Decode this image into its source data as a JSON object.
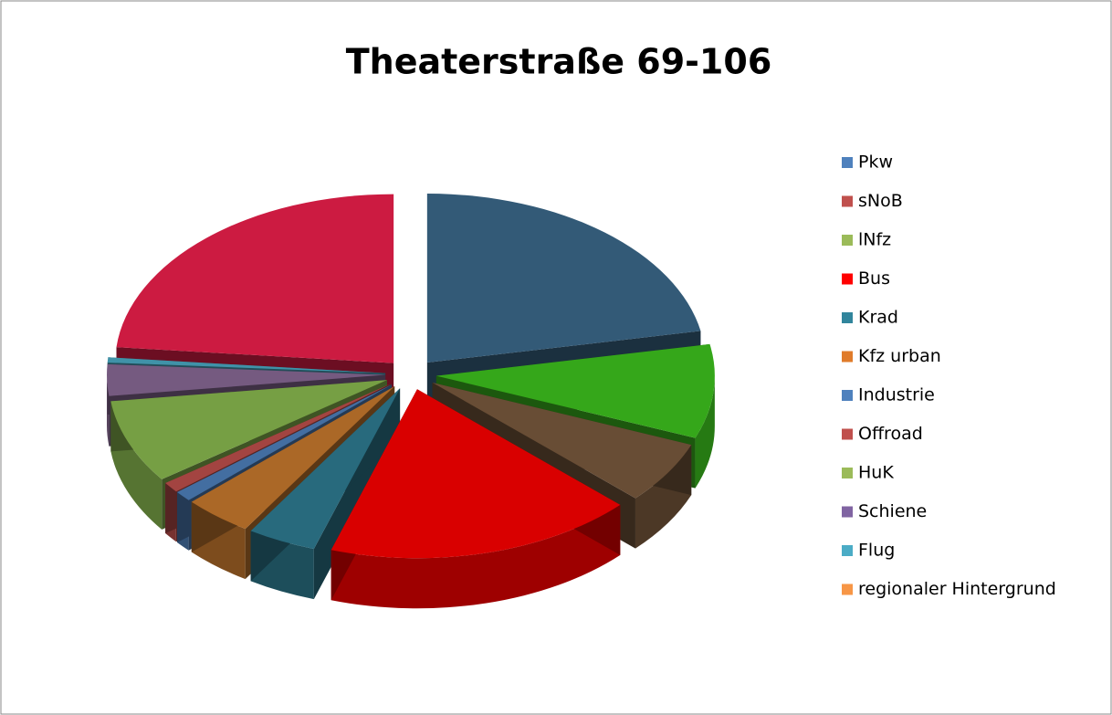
{
  "chart_data": {
    "type": "pie",
    "title": "Theaterstraße 69-106",
    "categories": [
      "Pkw",
      "sNoB",
      "lNfz",
      "Bus",
      "Krad",
      "Kfz urban",
      "Industrie",
      "Offroad",
      "HuK",
      "Schiene",
      "Flug",
      "regionaler Hintergrund"
    ],
    "values": [
      22,
      9,
      6,
      18,
      4,
      4,
      1,
      1,
      8,
      3,
      0.5,
      23.5
    ],
    "colors": [
      "#3c6a8c",
      "#3ec41e",
      "#7a5a3e",
      "#ff0000",
      "#2f7d93",
      "#c97a2e",
      "#4f81bd",
      "#c0504d",
      "#8bbb50",
      "#8a6a96",
      "#4bacc6",
      "#f0204c"
    ],
    "legend_colors": [
      "#4f81bd",
      "#c0504d",
      "#9bbb59",
      "#ff0000",
      "#31859c",
      "#e07b2a",
      "#4f81bd",
      "#c0504d",
      "#9bbb59",
      "#8064a2",
      "#4bacc6",
      "#f79646"
    ],
    "legend": "right"
  }
}
